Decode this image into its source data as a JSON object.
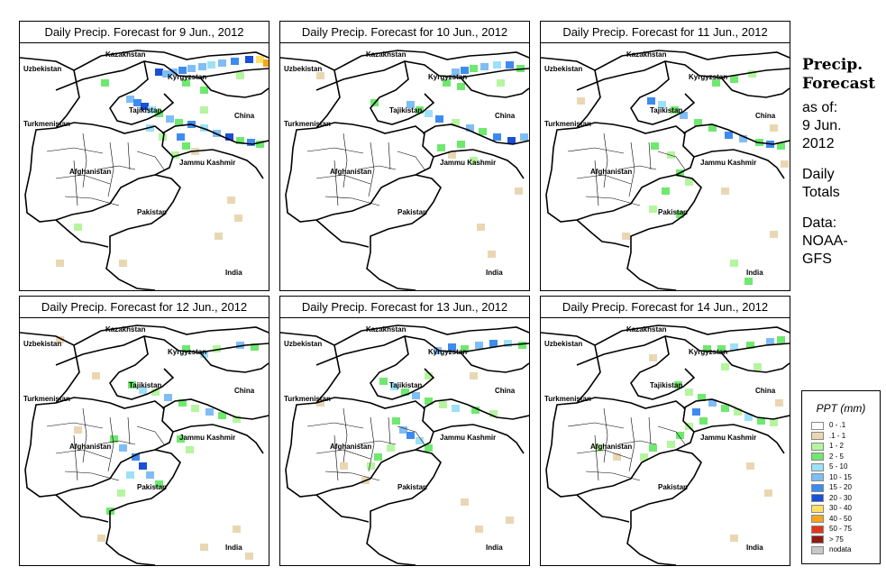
{
  "panels": [
    {
      "title": "Daily Precip. Forecast for  9 Jun., 2012"
    },
    {
      "title": "Daily Precip. Forecast for  10 Jun., 2012"
    },
    {
      "title": "Daily Precip. Forecast for  11 Jun., 2012"
    },
    {
      "title": "Daily Precip. Forecast for  12 Jun., 2012"
    },
    {
      "title": "Daily Precip. Forecast for  13 Jun., 2012"
    },
    {
      "title": "Daily Precip. Forecast for  14 Jun., 2012"
    }
  ],
  "map_labels": {
    "kazakhstan": "Kazakhstan",
    "uzbekistan": "Uzbekistan",
    "kyrgyzstan": "Kyrgyzstan",
    "tajikistan": "Tajikistan",
    "turkmenistan": "Turkmenistan",
    "china": "China",
    "jammu_kashmir": "Jammu Kashmir",
    "afghanistan": "Afghanistan",
    "pakistan": "Pakistan",
    "india": "India"
  },
  "side_text": {
    "heading_line1": "Precip.",
    "heading_line2": "Forecast",
    "as_of_line1": "as of:",
    "as_of_line2": "9 Jun.",
    "as_of_line3": "2012",
    "totals_line1": "Daily",
    "totals_line2": "Totals",
    "source_line1": "Data:",
    "source_line2": "NOAA-",
    "source_line3": "GFS"
  },
  "legend": {
    "title": "PPT (mm)",
    "items": [
      {
        "label": "0 - .1",
        "color": "#ffffff"
      },
      {
        "label": ".1 - 1",
        "color": "#e9d7b4"
      },
      {
        "label": "1 - 2",
        "color": "#b6f59f"
      },
      {
        "label": "2 - 5",
        "color": "#6fe86f"
      },
      {
        "label": "5 - 10",
        "color": "#9ee0f7"
      },
      {
        "label": "10 - 15",
        "color": "#7fbdf5"
      },
      {
        "label": "15 - 20",
        "color": "#3d8bf0"
      },
      {
        "label": "20 - 30",
        "color": "#1a4fd8"
      },
      {
        "label": "30 - 40",
        "color": "#ffe066"
      },
      {
        "label": "40 - 50",
        "color": "#f7a51e"
      },
      {
        "label": "50 - 75",
        "color": "#e2361a"
      },
      {
        "label": "> 75",
        "color": "#8f1a12"
      },
      {
        "label": "nodata",
        "color": "#c8c8c8"
      }
    ]
  }
}
